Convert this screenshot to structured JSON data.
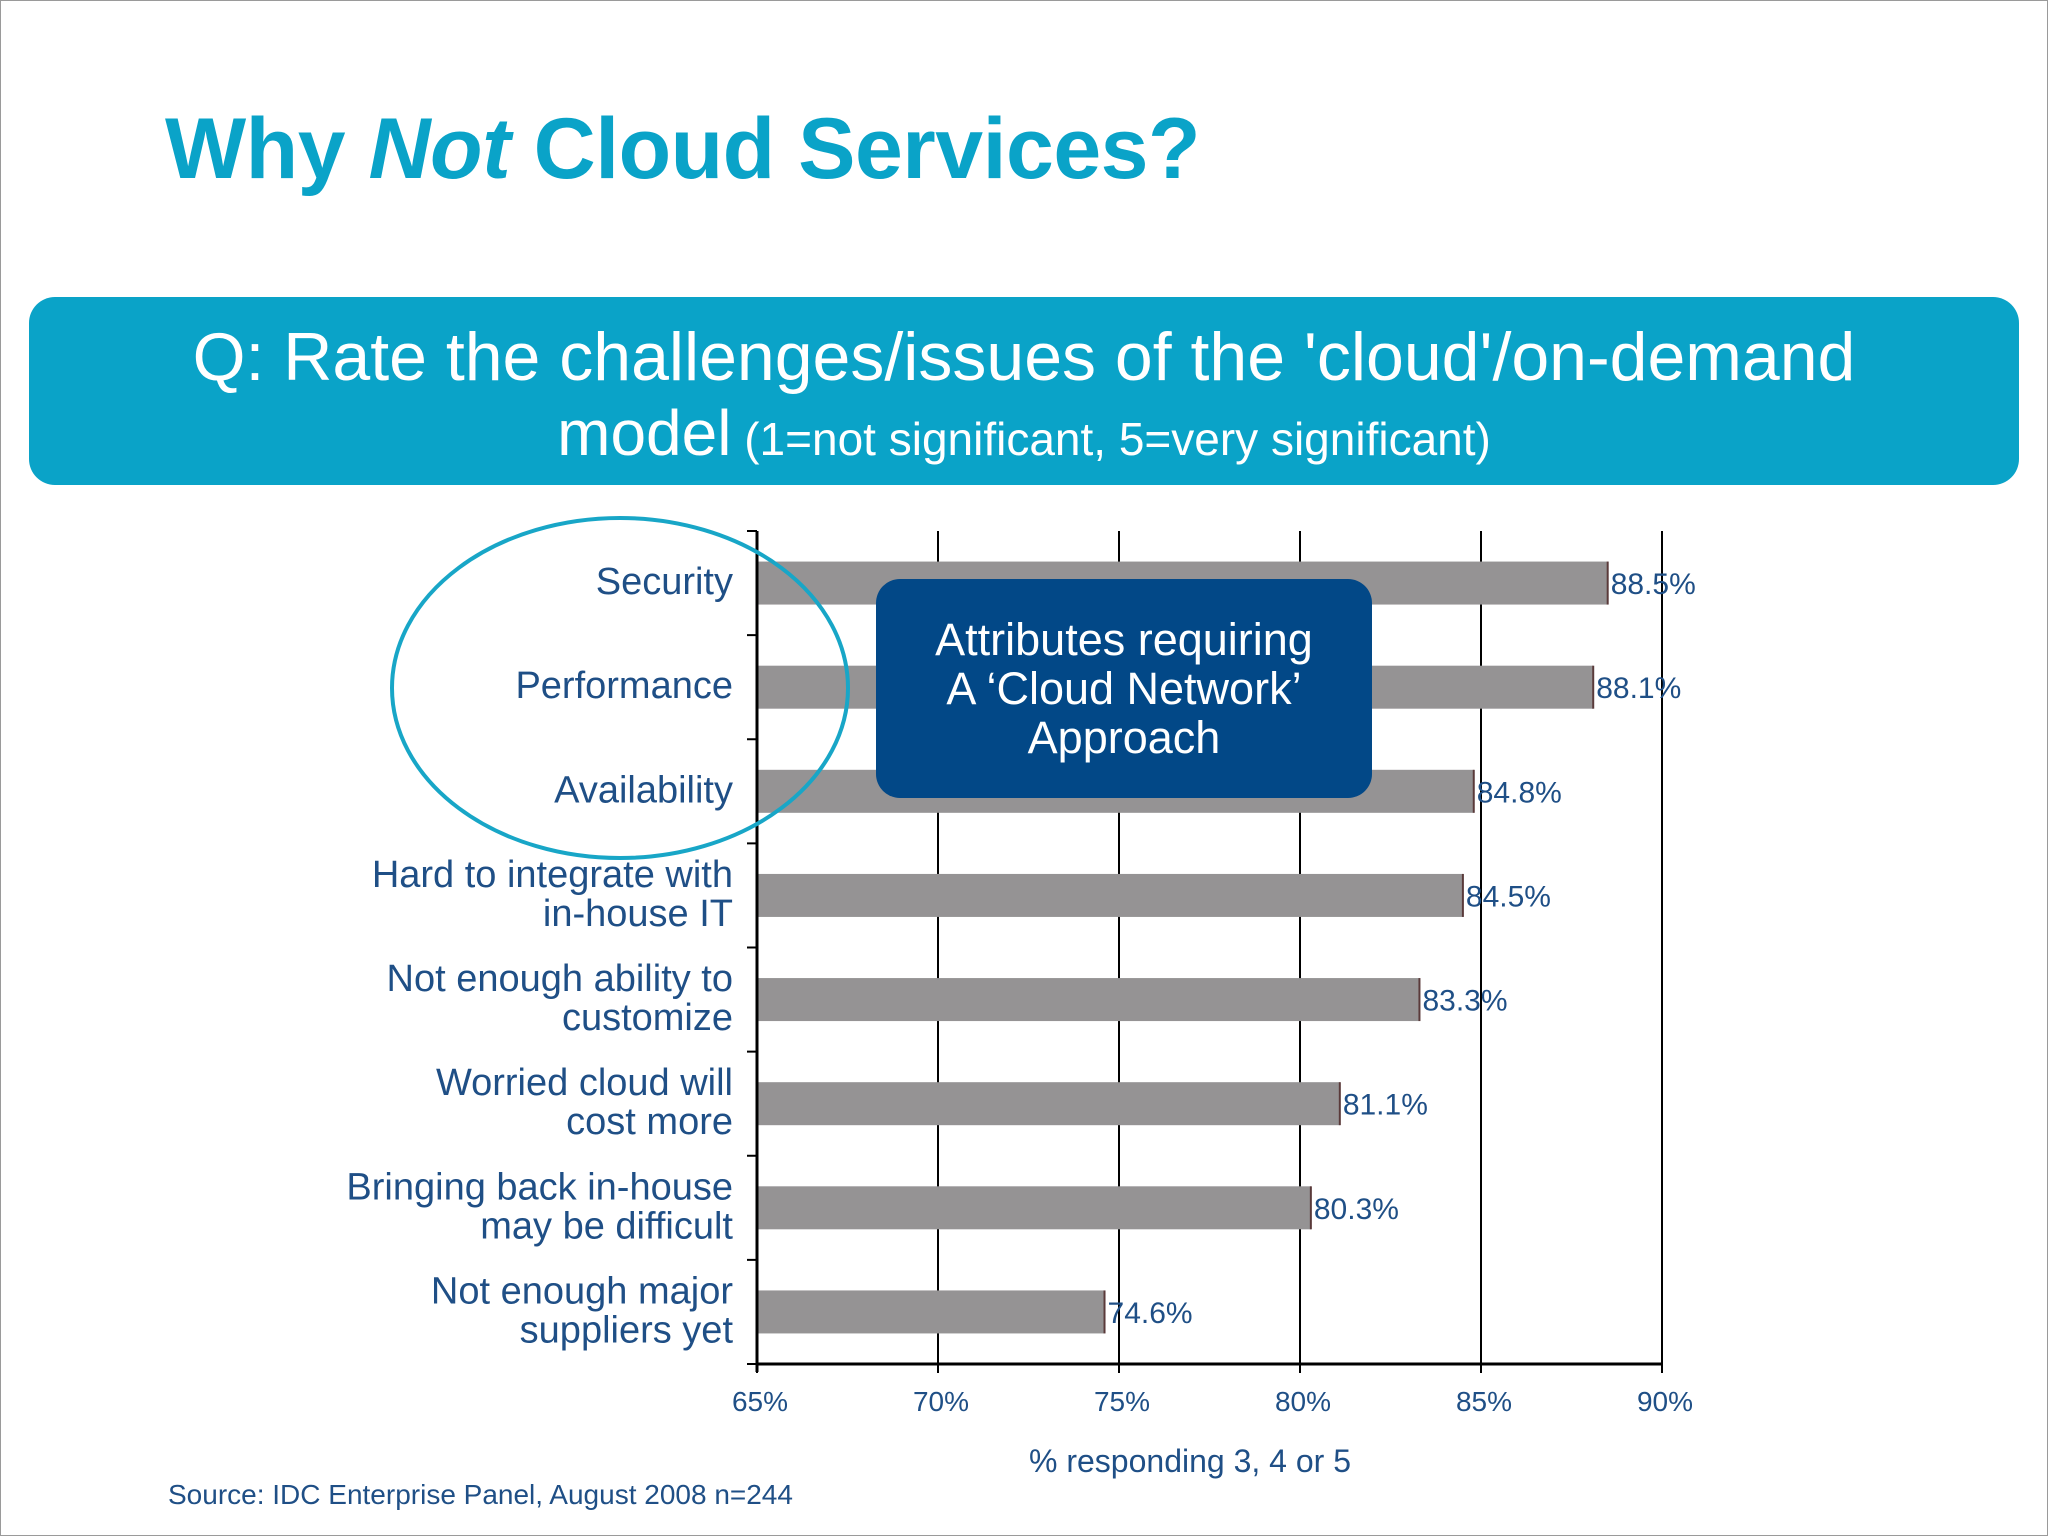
{
  "title": {
    "prefix": "Why ",
    "emphasis": "Not",
    "suffix": " Cloud Services?"
  },
  "question": {
    "line1": "Q: Rate the challenges/issues of the 'cloud'/on-demand",
    "line2_main": "model",
    "line2_sub": " (1=not significant, 5=very significant)"
  },
  "callout": {
    "lines": [
      "Attributes requiring",
      "A ‘Cloud Network’",
      "Approach"
    ]
  },
  "source": "Source: IDC Enterprise Panel, August 2008  n=244",
  "colors": {
    "accent": "#0aa3c8",
    "label_text": "#1f4f86",
    "bar_fill": "#959394",
    "callout_bg": "#024887"
  },
  "chart_data": {
    "type": "bar",
    "orientation": "horizontal",
    "categories": [
      [
        "Security"
      ],
      [
        "Performance"
      ],
      [
        "Availability"
      ],
      [
        "Hard to integrate with",
        "in-house IT"
      ],
      [
        "Not enough ability to",
        "customize"
      ],
      [
        "Worried cloud will",
        "cost more"
      ],
      [
        "Bringing back in-house",
        "may be difficult"
      ],
      [
        "Not enough major",
        "suppliers yet"
      ]
    ],
    "values": [
      88.5,
      88.1,
      84.8,
      84.5,
      83.3,
      81.1,
      80.3,
      74.6
    ],
    "data_labels": [
      "88.5%",
      "88.1%",
      "84.8%",
      "84.5%",
      "83.3%",
      "81.1%",
      "80.3%",
      "74.6%"
    ],
    "xlim": [
      65,
      90
    ],
    "xticks": [
      65,
      70,
      75,
      80,
      85,
      90
    ],
    "xtick_labels": [
      "65%",
      "70%",
      "75%",
      "80%",
      "85%",
      "90%"
    ],
    "xlabel": "% responding 3, 4 or 5",
    "ylabel": "",
    "grid": "vertical",
    "legend": "none",
    "highlighted_categories": [
      "Security",
      "Performance",
      "Availability"
    ]
  }
}
